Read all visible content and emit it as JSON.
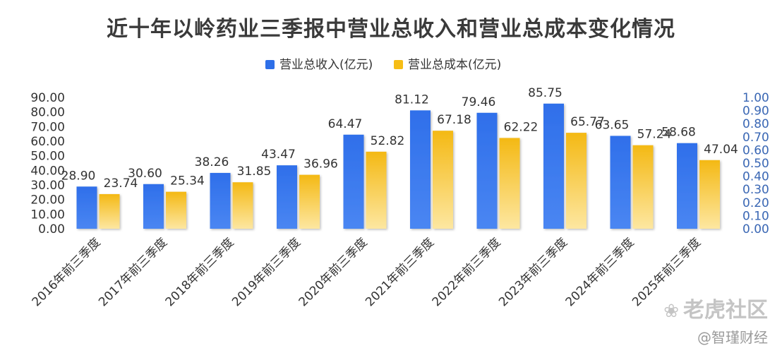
{
  "chart_data": {
    "type": "bar",
    "title": "近十年以岭药业三季报中营业总收入和营业总成本变化情况",
    "categories": [
      "2016年前三季度",
      "2017年前三季度",
      "2018年前三季度",
      "2019年前三季度",
      "2020年前三季度",
      "2021年前三季度",
      "2022年前三季度",
      "2023年前三季度",
      "2024年前三季度",
      "2025年前三季度"
    ],
    "series": [
      {
        "name": "营业总收入(亿元)",
        "color": "#2e6fe8",
        "values": [
          28.9,
          30.6,
          38.26,
          43.47,
          64.47,
          81.12,
          79.46,
          85.75,
          63.65,
          58.68
        ]
      },
      {
        "name": "营业总成本(亿元)",
        "color": "#f6bd16",
        "values": [
          23.74,
          25.34,
          31.85,
          36.96,
          52.82,
          67.18,
          62.22,
          65.77,
          57.24,
          47.04
        ]
      }
    ],
    "value_labels": [
      [
        "28.90",
        "30.60",
        "38.26",
        "43.47",
        "64.47",
        "81.12",
        "79.46",
        "85.75",
        "63.65",
        "58.68"
      ],
      [
        "23.74",
        "25.34",
        "31.85",
        "36.96",
        "52.82",
        "67.18",
        "62.22",
        "65.77",
        "57.24",
        "47.04"
      ]
    ],
    "ylim": [
      0,
      90
    ],
    "y_ticks": [
      "0.00",
      "10.00",
      "20.00",
      "30.00",
      "40.00",
      "50.00",
      "60.00",
      "70.00",
      "80.00",
      "90.00"
    ],
    "y2lim": [
      0,
      1
    ],
    "y2_ticks": [
      "0.00",
      "0.10",
      "0.20",
      "0.30",
      "0.40",
      "0.50",
      "0.60",
      "0.70",
      "0.80",
      "0.90",
      "1.00"
    ],
    "xlabel": "",
    "ylabel": "",
    "legend": "top-center",
    "grid": false
  },
  "watermark": {
    "tiger": "老虎社区",
    "author": "@智瑾财经"
  }
}
